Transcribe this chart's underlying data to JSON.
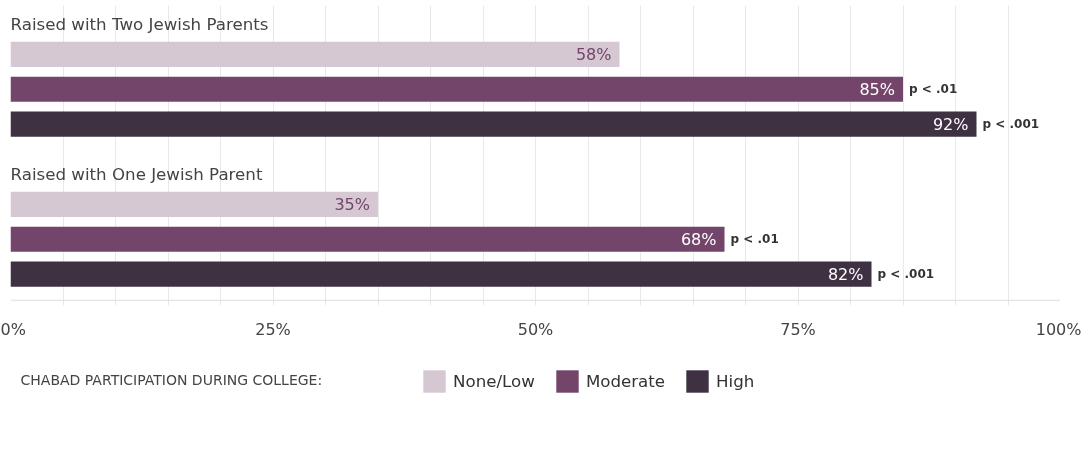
{
  "chart_data": {
    "type": "bar",
    "orientation": "horizontal",
    "categories": [
      "Raised with Two Jewish Parents",
      "Raised with One Jewish Parent"
    ],
    "series": [
      {
        "name": "None/Low",
        "color": "#d5c8d3",
        "values": [
          58,
          35
        ],
        "value_labels": [
          "58%",
          "35%"
        ]
      },
      {
        "name": "Moderate",
        "color": "#73456b",
        "values": [
          85,
          68
        ],
        "value_labels": [
          "85%",
          "68%"
        ]
      },
      {
        "name": "High",
        "color": "#3d3142",
        "values": [
          92,
          82
        ],
        "value_labels": [
          "92%",
          "82%"
        ]
      }
    ],
    "xlim": [
      0,
      100
    ],
    "xticks": [
      {
        "value": 0,
        "label": "0%"
      },
      {
        "value": 5,
        "label": null
      },
      {
        "value": 10,
        "label": null
      },
      {
        "value": 15,
        "label": null
      },
      {
        "value": 20,
        "label": null
      },
      {
        "value": 25,
        "label": "25%"
      },
      {
        "value": 30,
        "label": null
      },
      {
        "value": 35,
        "label": null
      },
      {
        "value": 40,
        "label": null
      },
      {
        "value": 45,
        "label": null
      },
      {
        "value": 50,
        "label": "50%"
      },
      {
        "value": 55,
        "label": null
      },
      {
        "value": 60,
        "label": null
      },
      {
        "value": 65,
        "label": null
      },
      {
        "value": 70,
        "label": null
      },
      {
        "value": 75,
        "label": "75%"
      },
      {
        "value": 80,
        "label": null
      },
      {
        "value": 85,
        "label": null
      },
      {
        "value": 90,
        "label": null
      },
      {
        "value": 95,
        "label": null
      },
      {
        "value": 100,
        "label": "100%"
      }
    ],
    "grid": "x",
    "legend": "bottom",
    "legend_title": "CHABAD PARTICIPATION DURING COLLEGE:",
    "annotations": [
      {
        "text": "p < .01",
        "x": 85,
        "y": "Raised with Two Jewish Parents"
      },
      "p < .001",
      {
        "text": "p < .01",
        "x": 68,
        "y": "Raised with One Jewish Parent"
      },
      "p < .001"
    ]
  }
}
